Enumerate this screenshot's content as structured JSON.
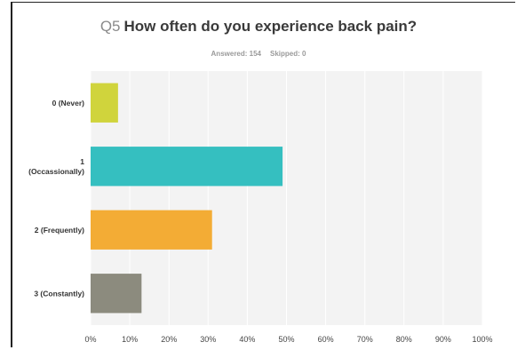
{
  "chart_data": {
    "type": "bar",
    "orientation": "horizontal",
    "question_number": "Q5",
    "title": "How often do you experience back pain?",
    "answered_label": "Answered: 154",
    "skipped_label": "Skipped: 0",
    "categories": [
      "0 (Never)",
      "1 (Occassionally)",
      "2 (Frequently)",
      "3 (Constantly)"
    ],
    "category_lines": [
      [
        "0 (Never)"
      ],
      [
        "1",
        "(Occassionally)"
      ],
      [
        "2 (Frequently)"
      ],
      [
        "3 (Constantly)"
      ]
    ],
    "values": [
      7,
      49,
      31,
      13
    ],
    "colors": [
      "#d0d43c",
      "#35bfc0",
      "#f3ac35",
      "#8c8b7e"
    ],
    "xlim": [
      0,
      100
    ],
    "xticks": [
      "0%",
      "10%",
      "20%",
      "30%",
      "40%",
      "50%",
      "60%",
      "70%",
      "80%",
      "90%",
      "100%"
    ],
    "grid": true
  }
}
